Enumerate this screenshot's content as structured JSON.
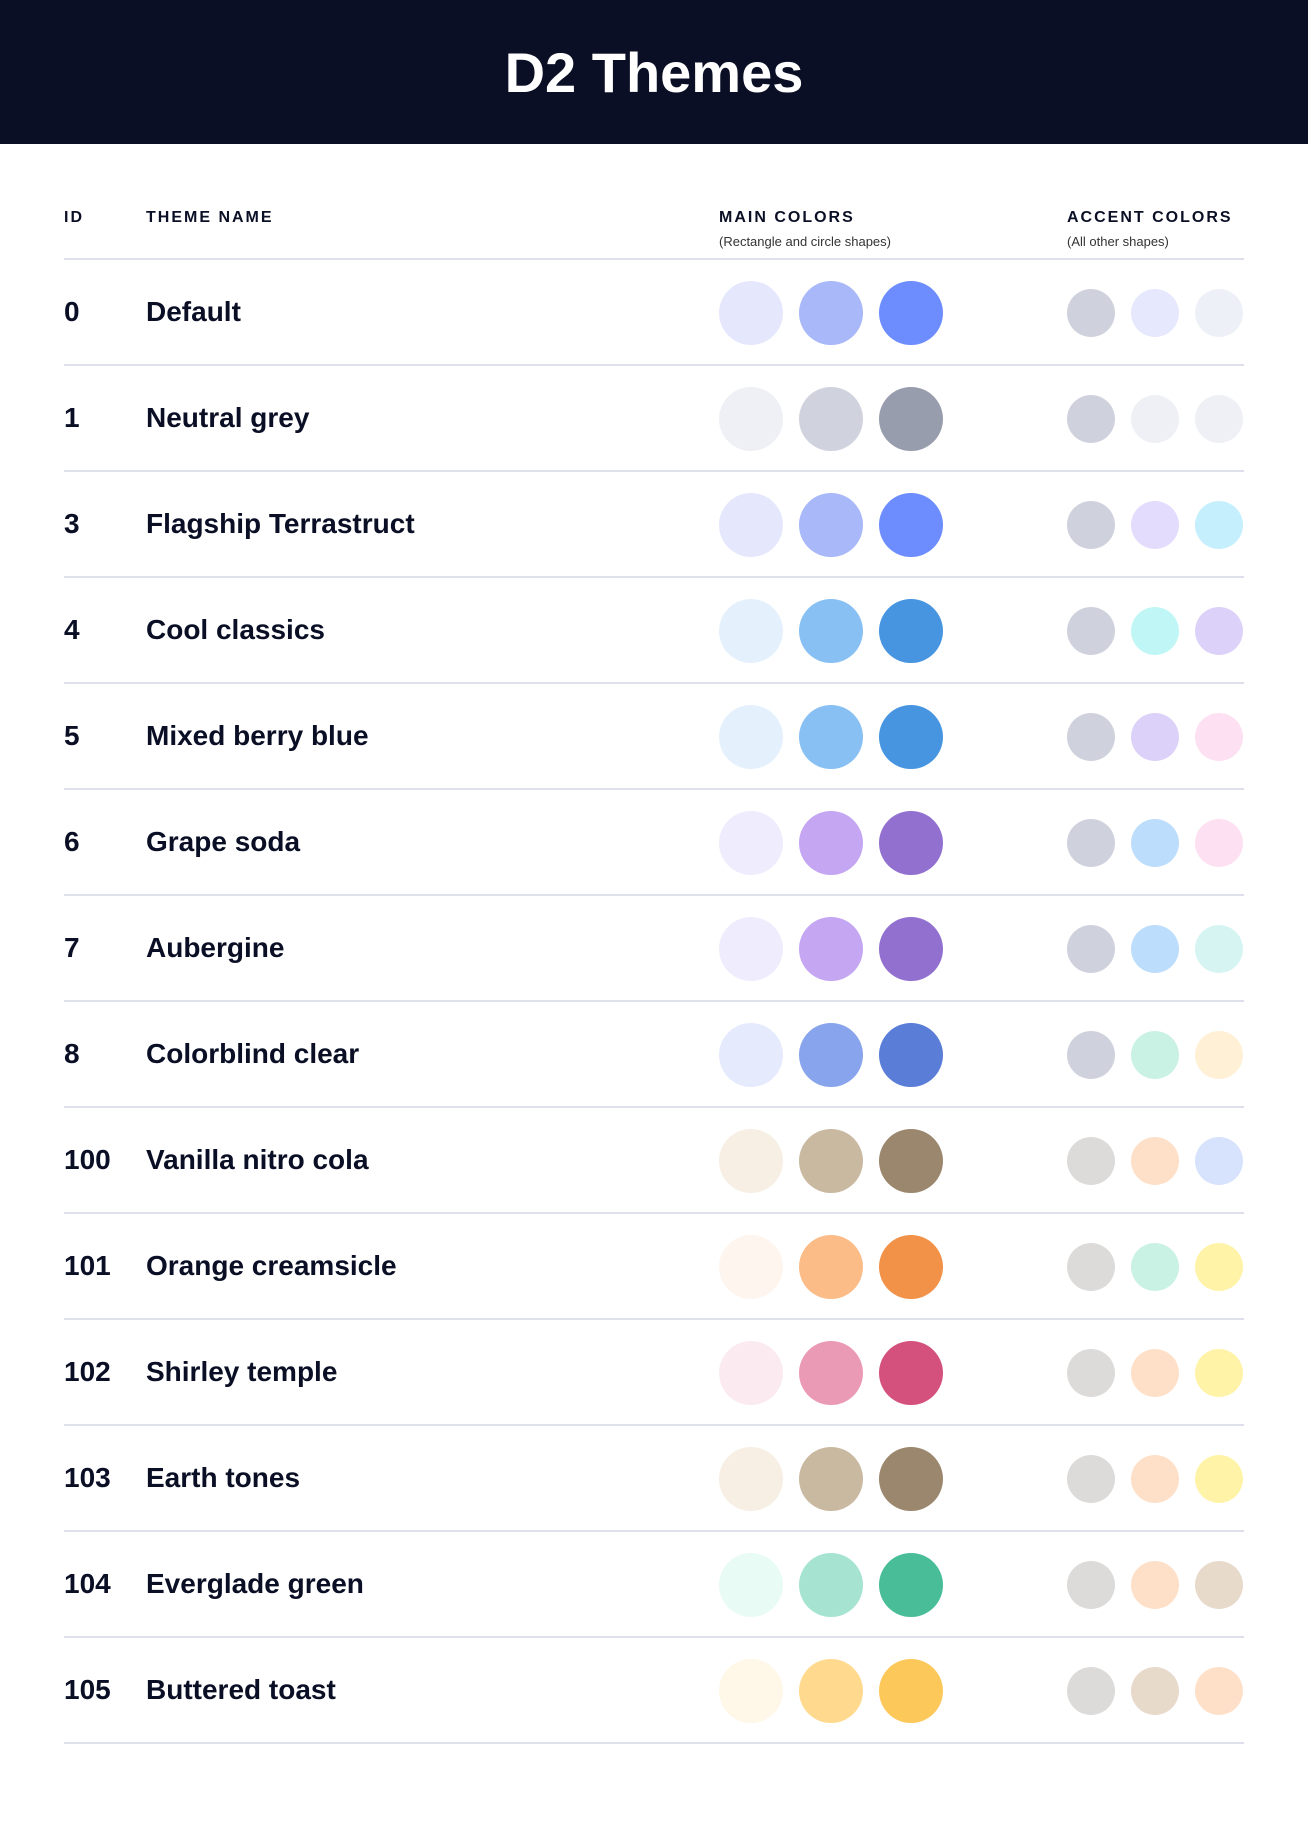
{
  "title": "D2 Themes",
  "columns": {
    "id": "ID",
    "name": "THEME NAME",
    "main": "MAIN COLORS",
    "main_sub": "(Rectangle and circle shapes)",
    "accent": "ACCENT COLORS",
    "accent_sub": "(All other shapes)"
  },
  "themes": [
    {
      "id": "0",
      "name": "Default",
      "main": [
        "#E5E8FD",
        "#A8B8F8",
        "#6D8DFE"
      ],
      "accent": [
        "#CFD1DC",
        "#E6E8FD",
        "#EEF0F7"
      ]
    },
    {
      "id": "1",
      "name": "Neutral grey",
      "main": [
        "#EEF0F6",
        "#D0D2DD",
        "#989DAE"
      ],
      "accent": [
        "#CFD1DC",
        "#EEF0F6",
        "#EEF0F6"
      ]
    },
    {
      "id": "3",
      "name": "Flagship Terrastruct",
      "main": [
        "#E5E8FD",
        "#A8B8F8",
        "#6D8DFE"
      ],
      "accent": [
        "#CFD1DC",
        "#E4DCFD",
        "#C5EFFD"
      ]
    },
    {
      "id": "4",
      "name": "Cool classics",
      "main": [
        "#E4F1FD",
        "#89C0F4",
        "#4795E0"
      ],
      "accent": [
        "#CFD1DC",
        "#C0F7F6",
        "#DCD1F9"
      ]
    },
    {
      "id": "5",
      "name": "Mixed berry blue",
      "main": [
        "#E4F1FD",
        "#89C0F4",
        "#4795E0"
      ],
      "accent": [
        "#CFD1DC",
        "#DCD1F9",
        "#FDE0F1"
      ]
    },
    {
      "id": "6",
      "name": "Grape soda",
      "main": [
        "#EFEDFD",
        "#C4A6F3",
        "#9170D0"
      ],
      "accent": [
        "#CFD1DC",
        "#BCDDFB",
        "#FDE0F1"
      ]
    },
    {
      "id": "7",
      "name": "Aubergine",
      "main": [
        "#EFEDFD",
        "#C4A6F3",
        "#9170D0"
      ],
      "accent": [
        "#CFD1DC",
        "#BCDDFB",
        "#D5F4F2"
      ]
    },
    {
      "id": "8",
      "name": "Colorblind clear",
      "main": [
        "#E5EAFD",
        "#88A4EC",
        "#5A7DD7"
      ],
      "accent": [
        "#CFD1DC",
        "#C9F1E4",
        "#FFF0D6"
      ]
    },
    {
      "id": "100",
      "name": "Vanilla nitro cola",
      "main": [
        "#F8EFE4",
        "#C9B9A0",
        "#9B876D"
      ],
      "accent": [
        "#DCDBDA",
        "#FEE0C9",
        "#D7E2FD"
      ]
    },
    {
      "id": "101",
      "name": "Orange creamsicle",
      "main": [
        "#FEF5EF",
        "#FBBC88",
        "#F29148"
      ],
      "accent": [
        "#DCDBDA",
        "#C9F1E4",
        "#FFF3A8"
      ]
    },
    {
      "id": "102",
      "name": "Shirley temple",
      "main": [
        "#FBEBF1",
        "#EB9AB6",
        "#D4517E"
      ],
      "accent": [
        "#DCDBDA",
        "#FEE0C9",
        "#FFF3A8"
      ]
    },
    {
      "id": "103",
      "name": "Earth tones",
      "main": [
        "#F8EFE4",
        "#C9B9A0",
        "#9B876D"
      ],
      "accent": [
        "#DCDBDA",
        "#FEE0C9",
        "#FFF3A8"
      ]
    },
    {
      "id": "104",
      "name": "Everglade green",
      "main": [
        "#E8FBF4",
        "#A6E4D1",
        "#48BD98"
      ],
      "accent": [
        "#DCDBDA",
        "#FEE0C9",
        "#E8DACA"
      ]
    },
    {
      "id": "105",
      "name": "Buttered toast",
      "main": [
        "#FFF7E8",
        "#FFDA8E",
        "#FDC85A"
      ],
      "accent": [
        "#DCDBDA",
        "#E8DACA",
        "#FEE0C9"
      ]
    }
  ]
}
